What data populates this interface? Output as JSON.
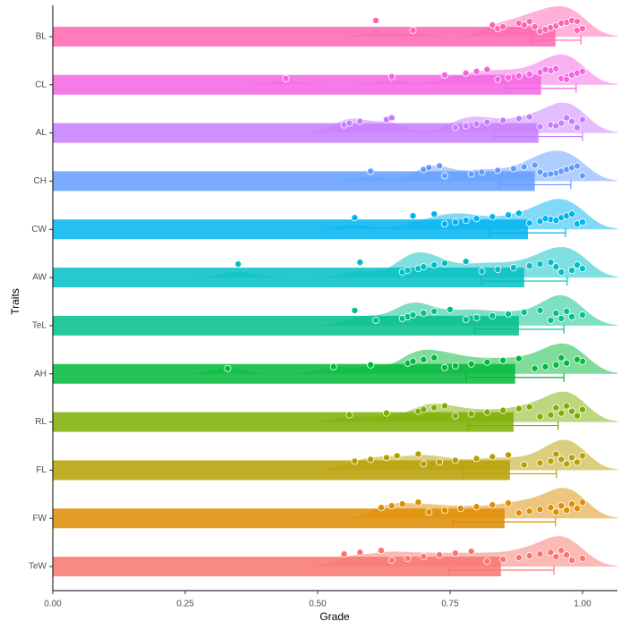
{
  "chart_data": {
    "type": "raincloud",
    "xlabel": "Grade",
    "ylabel": "Traits",
    "categories": [
      "BL",
      "CL",
      "AL",
      "CH",
      "CW",
      "AW",
      "TeL",
      "AH",
      "RL",
      "FL",
      "FW",
      "TeW"
    ],
    "colors": [
      "#FF64B0",
      "#F564E3",
      "#C77CFF",
      "#619CFF",
      "#00B4F0",
      "#00BFC4",
      "#00C08B",
      "#00BA38",
      "#7CAE00",
      "#B79F00",
      "#DE8C00",
      "#F8766D"
    ],
    "values": [
      0.949,
      0.922,
      0.917,
      0.91,
      0.897,
      0.89,
      0.88,
      0.873,
      0.87,
      0.863,
      0.853,
      0.846
    ],
    "error_low": [
      0.904,
      0.855,
      0.833,
      0.843,
      0.824,
      0.809,
      0.796,
      0.78,
      0.784,
      0.775,
      0.755,
      0.748
    ],
    "error_high": [
      0.997,
      0.988,
      1.0,
      0.978,
      0.968,
      0.971,
      0.965,
      0.965,
      0.954,
      0.951,
      0.949,
      0.946
    ],
    "points": [
      [
        0.61,
        0.68,
        0.84,
        0.85,
        0.83,
        0.88,
        0.9,
        0.92,
        0.93,
        0.94,
        0.95,
        0.96,
        0.97,
        0.98,
        0.99,
        1.0,
        0.91,
        0.89,
        0.96,
        0.99
      ],
      [
        0.44,
        0.64,
        0.74,
        0.78,
        0.8,
        0.82,
        0.84,
        0.86,
        0.88,
        0.9,
        0.92,
        0.94,
        0.95,
        0.96,
        0.97,
        0.98,
        0.99,
        1.0,
        0.93,
        0.97
      ],
      [
        0.55,
        0.56,
        0.58,
        0.63,
        0.64,
        0.76,
        0.78,
        0.8,
        0.82,
        0.85,
        0.88,
        0.9,
        0.92,
        0.94,
        0.96,
        0.98,
        1.0,
        0.97,
        0.99,
        0.95
      ],
      [
        0.6,
        0.7,
        0.71,
        0.73,
        0.74,
        0.79,
        0.81,
        0.84,
        0.87,
        0.89,
        0.91,
        0.93,
        0.95,
        0.96,
        0.97,
        0.98,
        0.99,
        1.0,
        0.94,
        0.92
      ],
      [
        0.57,
        0.68,
        0.72,
        0.74,
        0.76,
        0.78,
        0.8,
        0.83,
        0.86,
        0.88,
        0.9,
        0.92,
        0.94,
        0.96,
        0.97,
        0.98,
        0.99,
        1.0,
        0.95,
        0.93
      ],
      [
        0.35,
        0.58,
        0.66,
        0.67,
        0.69,
        0.7,
        0.72,
        0.74,
        0.78,
        0.81,
        0.84,
        0.87,
        0.9,
        0.92,
        0.94,
        0.96,
        0.98,
        1.0,
        0.95,
        0.99
      ],
      [
        0.57,
        0.61,
        0.66,
        0.67,
        0.68,
        0.7,
        0.72,
        0.75,
        0.78,
        0.8,
        0.83,
        0.86,
        0.89,
        0.92,
        0.94,
        0.96,
        0.98,
        1.0,
        0.95,
        0.97
      ],
      [
        0.33,
        0.53,
        0.6,
        0.67,
        0.68,
        0.7,
        0.72,
        0.74,
        0.76,
        0.79,
        0.82,
        0.85,
        0.88,
        0.91,
        0.93,
        0.95,
        0.97,
        1.0,
        0.99,
        0.96
      ],
      [
        0.56,
        0.63,
        0.69,
        0.7,
        0.72,
        0.74,
        0.76,
        0.79,
        0.82,
        0.85,
        0.88,
        0.9,
        0.92,
        0.94,
        0.96,
        0.98,
        1.0,
        0.95,
        0.97,
        0.99
      ],
      [
        0.57,
        0.6,
        0.63,
        0.65,
        0.69,
        0.7,
        0.73,
        0.76,
        0.8,
        0.83,
        0.86,
        0.89,
        0.92,
        0.94,
        0.96,
        0.98,
        1.0,
        0.95,
        0.97,
        0.99
      ],
      [
        0.62,
        0.64,
        0.66,
        0.69,
        0.71,
        0.74,
        0.77,
        0.8,
        0.83,
        0.86,
        0.88,
        0.9,
        0.92,
        0.94,
        0.96,
        0.98,
        1.0,
        0.95,
        0.97,
        0.99
      ],
      [
        0.55,
        0.58,
        0.62,
        0.64,
        0.67,
        0.7,
        0.73,
        0.76,
        0.79,
        0.82,
        0.85,
        0.88,
        0.9,
        0.92,
        0.94,
        0.96,
        0.98,
        1.0,
        0.95,
        0.97
      ]
    ],
    "xlim": [
      0,
      1.066
    ],
    "xticks": [
      {
        "value": 0,
        "label": "0.00"
      },
      {
        "value": 0.25,
        "label": "0.25"
      },
      {
        "value": 0.5,
        "label": "0.50"
      },
      {
        "value": 0.75,
        "label": "0.75"
      },
      {
        "value": 1,
        "label": "1.00"
      }
    ]
  }
}
